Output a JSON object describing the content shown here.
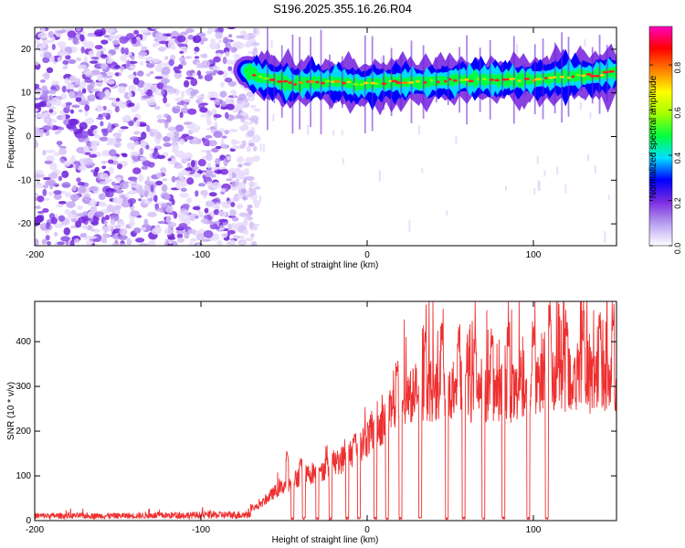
{
  "title": "S196.2025.355.16.26.R04",
  "chart_data": [
    {
      "type": "heatmap",
      "xlabel": "Height of straight line (km)",
      "ylabel": "Frequency (Hz)",
      "xlim": [
        -200,
        150
      ],
      "ylim": [
        -25,
        25
      ],
      "xticks": [
        -200,
        -100,
        0,
        100
      ],
      "yticks": [
        -20,
        -10,
        0,
        10,
        20
      ],
      "colorbar": {
        "label": "Normalized spectral amplitude",
        "range": [
          0,
          0.97
        ],
        "ticks": [
          0.0,
          0.2,
          0.4,
          0.6,
          0.8
        ],
        "colormap": [
          "#ffffff",
          "#b8a0f0",
          "#7b2be0",
          "#0000ff",
          "#00e0ff",
          "#00ff40",
          "#a0ff00",
          "#ffff00",
          "#ff8000",
          "#ff0000",
          "#ff00c0"
        ]
      },
      "noise_region": {
        "x_from": -200,
        "x_to": -70,
        "y_from": -25,
        "y_to": 25
      },
      "signal_ridge": {
        "x": [
          -72,
          -65,
          -55,
          -45,
          -35,
          -25,
          -15,
          -5,
          5,
          15,
          25,
          35,
          45,
          55,
          65,
          75,
          85,
          95,
          105,
          115,
          125,
          135,
          145,
          150
        ],
        "frequency_hz": [
          15,
          13.5,
          13,
          12,
          12.5,
          12.5,
          12.5,
          11.8,
          12.2,
          12.5,
          12.5,
          12.5,
          12.8,
          13,
          13,
          13,
          13,
          13,
          13.2,
          13.5,
          13.8,
          14,
          14.5,
          15
        ]
      }
    },
    {
      "type": "line",
      "xlabel": "Height of straight line (km)",
      "ylabel": "SNR (10 * v/v)",
      "xlim": [
        -200,
        150
      ],
      "ylim": [
        0,
        490
      ],
      "xticks": [
        -200,
        -100,
        0,
        100
      ],
      "yticks": [
        0,
        100,
        200,
        300,
        400
      ],
      "color": "#ee3030",
      "baseline": {
        "x": [
          -200,
          -150,
          -100,
          -75,
          -65,
          -55,
          -45,
          -35,
          -25,
          -15,
          -5,
          5,
          15,
          25,
          35,
          45,
          55,
          65,
          75,
          85,
          95,
          105,
          115,
          125,
          135,
          150
        ],
        "snr": [
          15,
          15,
          18,
          20,
          35,
          70,
          95,
          110,
          125,
          145,
          175,
          215,
          255,
          300,
          310,
          300,
          310,
          290,
          310,
          300,
          320,
          320,
          330,
          335,
          330,
          320
        ]
      },
      "dropouts_x": [
        -45,
        -38,
        -30,
        -22,
        -12,
        -5,
        5,
        12,
        20,
        32,
        48,
        58,
        70,
        82,
        97,
        108
      ],
      "peaks": {
        "x": [
          -48,
          -40,
          -28,
          -18,
          -8,
          18,
          35,
          45,
          55,
          65,
          75,
          85,
          100,
          110,
          120,
          130,
          140,
          148
        ],
        "snr": [
          155,
          140,
          120,
          145,
          195,
          370,
          430,
          445,
          440,
          420,
          430,
          445,
          455,
          485,
          480,
          470,
          475,
          485
        ]
      }
    }
  ]
}
